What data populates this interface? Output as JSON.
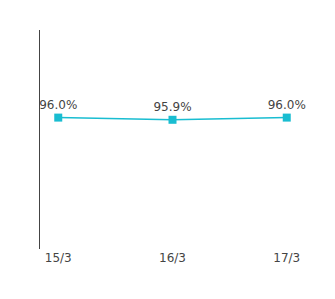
{
  "chart_data": {
    "type": "line",
    "categories": [
      "15/3",
      "16/3",
      "17/3"
    ],
    "values": [
      96.0,
      95.9,
      96.0
    ],
    "value_labels": [
      "96.0%",
      "95.9%",
      "96.0%"
    ],
    "data_labels": true,
    "color": "#19BDD1",
    "marker": "square",
    "line_style": "solid",
    "ylim": [
      90.0,
      100.0
    ],
    "grid": false,
    "tick_labels": "x"
  }
}
